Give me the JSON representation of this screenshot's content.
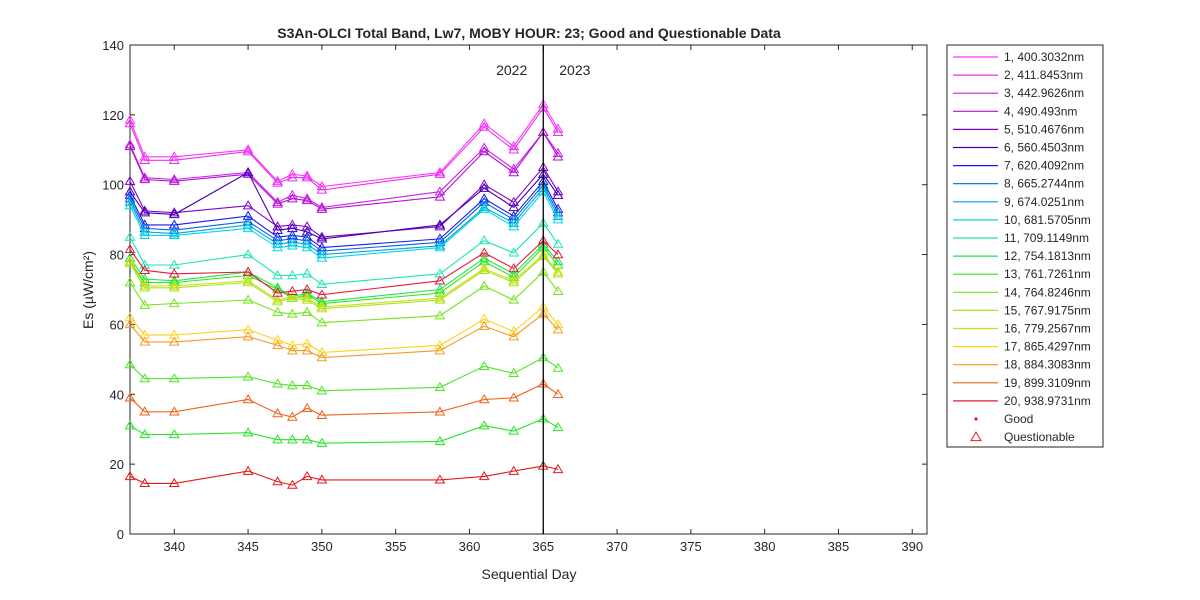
{
  "chart_data": {
    "type": "line",
    "title": "S3An-OLCI Total Band,  Lw7, MOBY HOUR: 23;  Good and Questionable Data",
    "xlabel": "Sequential Day",
    "ylabel": "Es (µW/cm²)",
    "xlim": [
      337,
      391
    ],
    "ylim": [
      0,
      140
    ],
    "xticks": [
      340,
      345,
      350,
      355,
      360,
      365,
      370,
      375,
      380,
      385,
      390
    ],
    "yticks": [
      0,
      20,
      40,
      60,
      80,
      100,
      120,
      140
    ],
    "grid": false,
    "divider": {
      "x": 365,
      "left_label": "2022",
      "right_label": "2023"
    },
    "x": [
      337,
      338,
      340,
      345,
      347,
      348,
      349,
      350,
      358,
      361,
      363,
      365,
      366
    ],
    "series": [
      {
        "name": "1, 400.3032nm",
        "color": "#ff33ff",
        "values": [
          118.5,
          108,
          108,
          110,
          101,
          103,
          102.5,
          99.5,
          103.5,
          117.5,
          111,
          123,
          116
        ]
      },
      {
        "name": "2, 411.8453nm",
        "color": "#e633f2",
        "values": [
          117.5,
          107,
          107,
          109.5,
          100.5,
          102,
          102,
          98.5,
          103,
          116.5,
          110,
          122,
          115
        ]
      },
      {
        "name": "3, 442.9626nm",
        "color": "#cc22e6",
        "values": [
          111.5,
          102,
          101.5,
          103.5,
          95,
          97,
          96,
          93.5,
          98,
          110.5,
          104.5,
          115,
          109
        ]
      },
      {
        "name": "4,  490.493nm",
        "color": "#b311d9",
        "values": [
          111,
          101.5,
          101,
          103,
          94.5,
          96,
          95.5,
          93,
          96.5,
          109.5,
          103.5,
          115,
          108
        ]
      },
      {
        "name": "5, 510.4676nm",
        "color": "#8000cc",
        "values": [
          101,
          92.5,
          92,
          94,
          88,
          88.5,
          88,
          85,
          88,
          100,
          95,
          105,
          98
        ]
      },
      {
        "name": "6, 560.4503nm",
        "color": "#4000b3",
        "values": [
          98,
          92,
          91.5,
          103.5,
          87,
          87.5,
          86.5,
          84.5,
          88.5,
          99,
          93.5,
          103,
          97
        ]
      },
      {
        "name": "7, 620.4092nm",
        "color": "#1a1aee",
        "values": [
          97,
          88.5,
          88.5,
          91,
          85,
          85.5,
          85,
          82,
          84.5,
          96,
          91,
          101,
          93
        ]
      },
      {
        "name": "8, 665.2744nm",
        "color": "#0066e6",
        "values": [
          96,
          87.5,
          87,
          89.5,
          84,
          84.5,
          84,
          81,
          83.5,
          95,
          90,
          100,
          92
        ]
      },
      {
        "name": "9, 674.0251nm",
        "color": "#00a3d9",
        "values": [
          95,
          86.5,
          86,
          88.5,
          83,
          83.5,
          83,
          80,
          82.5,
          93.5,
          89,
          99,
          91
        ]
      },
      {
        "name": "10, 681.5705nm",
        "color": "#00d9e6",
        "values": [
          94,
          85.5,
          85.5,
          87.5,
          82,
          82.5,
          82,
          79,
          82,
          93,
          88,
          98,
          90
        ]
      },
      {
        "name": "11, 709.1149nm",
        "color": "#1ae6b3",
        "values": [
          85,
          77,
          77,
          80,
          74,
          74,
          74.5,
          71.5,
          74.5,
          84,
          80.5,
          89,
          83
        ]
      },
      {
        "name": "12, 754.1813nm",
        "color": "#1fe64d",
        "values": [
          79,
          73,
          72.5,
          75,
          70.5,
          68,
          69,
          66.5,
          70,
          79,
          74.5,
          83,
          78
        ]
      },
      {
        "name": "13, 761.7261nm",
        "color": "#33e619",
        "values": [
          78,
          72,
          72,
          74,
          70,
          67.5,
          68.5,
          66,
          69,
          78,
          73.5,
          82,
          77
        ]
      },
      {
        "name": "14, 764.8246nm",
        "color": "#73e619",
        "values": [
          72,
          65.5,
          66,
          67,
          63.5,
          63,
          63.5,
          60.5,
          62.5,
          71,
          67,
          75,
          69.5
        ]
      },
      {
        "name": "15, 767.9175nm",
        "color": "#a6e619",
        "values": [
          77.5,
          70.5,
          70.5,
          72,
          66.5,
          67.5,
          67,
          64.5,
          67,
          75.5,
          72,
          79.5,
          74.5
        ]
      },
      {
        "name": "16, 779.2567nm",
        "color": "#ccdd11",
        "values": [
          78,
          71,
          71,
          72.5,
          67,
          68,
          67.5,
          65,
          67.5,
          76,
          72.5,
          80,
          75
        ]
      },
      {
        "name": "17, 865.4297nm",
        "color": "#ffd21a",
        "values": [
          62,
          57,
          57,
          58.5,
          55.5,
          54,
          54.5,
          52,
          54,
          61.5,
          58,
          65,
          60
        ]
      },
      {
        "name": "18, 884.3083nm",
        "color": "#f59a26",
        "values": [
          60,
          55,
          55,
          56.5,
          54,
          52.5,
          52.5,
          50.5,
          52.5,
          59.5,
          56.5,
          63,
          58.5
        ]
      },
      {
        "name": "19, 899.3109nm",
        "color": "#f26019",
        "values": [
          39,
          35,
          35,
          38.5,
          34.5,
          33.5,
          36,
          34,
          35,
          38.5,
          39,
          43,
          40
        ]
      },
      {
        "name": "20, 938.9731nm",
        "color": "#e6193a",
        "values": [
          81.5,
          75.5,
          74.5,
          75,
          69,
          69.5,
          70,
          68.5,
          72.5,
          80.5,
          76,
          84,
          80
        ]
      },
      {
        "name": "",
        "color": "#4de626",
        "values": [
          48.5,
          44.5,
          44.5,
          45,
          43,
          42.5,
          42.5,
          41,
          42,
          48,
          46,
          50.5,
          47.5
        ]
      },
      {
        "name": "",
        "color": "#26e626",
        "values": [
          31,
          28.5,
          28.5,
          29,
          27,
          27,
          27,
          26,
          26.5,
          31,
          29.5,
          33,
          30.5
        ]
      },
      {
        "name": "",
        "color": "#e61919",
        "values": [
          16.5,
          14.5,
          14.5,
          18,
          15,
          14,
          16.5,
          15.5,
          15.5,
          16.5,
          18,
          19.5,
          18.5
        ]
      }
    ],
    "legend": {
      "position": "right-outside",
      "marker_entries": [
        {
          "label": "Good",
          "marker": "dot",
          "color": "#e61919"
        },
        {
          "label": "Questionable",
          "marker": "triangle",
          "color": "#e61919"
        }
      ]
    }
  }
}
